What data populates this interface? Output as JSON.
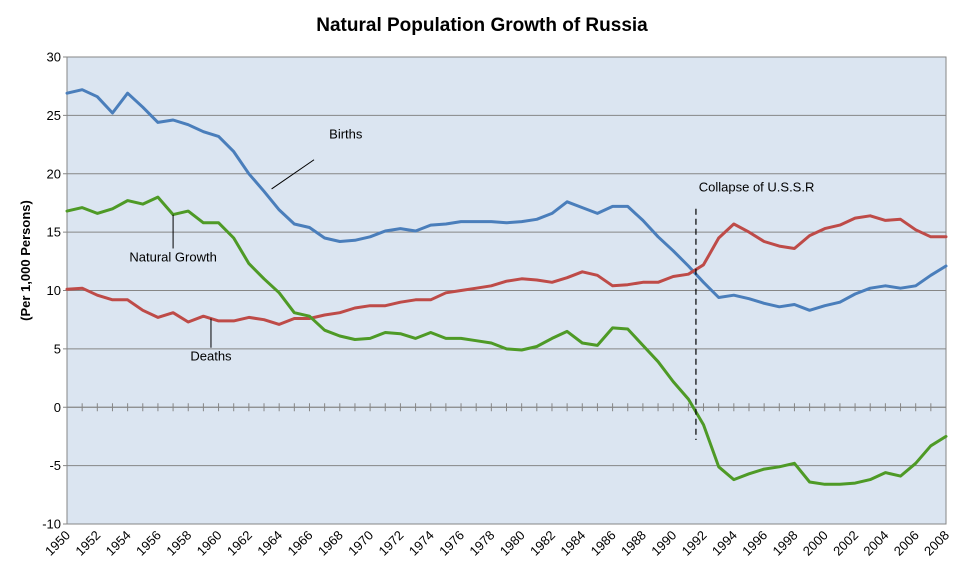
{
  "chart_data": {
    "type": "line",
    "title": "Natural Population Growth of Russia",
    "xlabel": "",
    "ylabel": "(Per 1,000 Persons)",
    "xlim": [
      1950,
      2008
    ],
    "ylim": [
      -10,
      30
    ],
    "yticks": [
      30,
      25,
      20,
      15,
      10,
      5,
      0,
      -5,
      -10
    ],
    "xticks": [
      1950,
      1952,
      1954,
      1956,
      1958,
      1960,
      1962,
      1964,
      1966,
      1968,
      1970,
      1972,
      1974,
      1976,
      1978,
      1980,
      1982,
      1984,
      1986,
      1988,
      1990,
      1992,
      1994,
      1996,
      1998,
      2000,
      2002,
      2004,
      2006,
      2008
    ],
    "grid": true,
    "background": "#dbe5f1",
    "x": [
      1950,
      1951,
      1952,
      1953,
      1954,
      1955,
      1956,
      1957,
      1958,
      1959,
      1960,
      1961,
      1962,
      1963,
      1964,
      1965,
      1966,
      1967,
      1968,
      1969,
      1970,
      1971,
      1972,
      1973,
      1974,
      1975,
      1976,
      1977,
      1978,
      1979,
      1980,
      1981,
      1982,
      1983,
      1984,
      1985,
      1986,
      1987,
      1988,
      1989,
      1990,
      1991,
      1992,
      1993,
      1994,
      1995,
      1996,
      1997,
      1998,
      1999,
      2000,
      2001,
      2002,
      2003,
      2004,
      2005,
      2006,
      2007,
      2008
    ],
    "series": [
      {
        "name": "Births",
        "color": "#4a7ebb",
        "values": [
          26.9,
          27.2,
          26.6,
          25.2,
          26.9,
          25.7,
          24.4,
          24.6,
          24.2,
          23.6,
          23.2,
          21.9,
          20.0,
          18.5,
          16.9,
          15.7,
          15.4,
          14.5,
          14.2,
          14.3,
          14.6,
          15.1,
          15.3,
          15.1,
          15.6,
          15.7,
          15.9,
          15.9,
          15.9,
          15.8,
          15.9,
          16.1,
          16.6,
          17.6,
          17.1,
          16.6,
          17.2,
          17.2,
          16.0,
          14.6,
          13.4,
          12.1,
          10.7,
          9.4,
          9.6,
          9.3,
          8.9,
          8.6,
          8.8,
          8.3,
          8.7,
          9.0,
          9.7,
          10.2,
          10.4,
          10.2,
          10.4,
          11.3,
          12.1
        ]
      },
      {
        "name": "Deaths",
        "color": "#be4b48",
        "values": [
          10.1,
          10.2,
          9.6,
          9.2,
          9.2,
          8.3,
          7.7,
          8.1,
          7.3,
          7.8,
          7.4,
          7.4,
          7.7,
          7.5,
          7.1,
          7.6,
          7.6,
          7.9,
          8.1,
          8.5,
          8.7,
          8.7,
          9.0,
          9.2,
          9.2,
          9.8,
          10.0,
          10.2,
          10.4,
          10.8,
          11.0,
          10.9,
          10.7,
          11.1,
          11.6,
          11.3,
          10.4,
          10.5,
          10.7,
          10.7,
          11.2,
          11.4,
          12.2,
          14.5,
          15.7,
          15.0,
          14.2,
          13.8,
          13.6,
          14.7,
          15.3,
          15.6,
          16.2,
          16.4,
          16.0,
          16.1,
          15.2,
          14.6,
          14.6
        ]
      },
      {
        "name": "Natural Growth",
        "color": "#4e9a26",
        "values": [
          16.8,
          17.1,
          16.6,
          17.0,
          17.7,
          17.4,
          18.0,
          16.5,
          16.8,
          15.8,
          15.8,
          14.5,
          12.3,
          11.0,
          9.8,
          8.1,
          7.8,
          6.6,
          6.1,
          5.8,
          5.9,
          6.4,
          6.3,
          5.9,
          6.4,
          5.9,
          5.9,
          5.7,
          5.5,
          5.0,
          4.9,
          5.2,
          5.9,
          6.5,
          5.5,
          5.3,
          6.8,
          6.7,
          5.3,
          3.9,
          2.2,
          0.7,
          -1.5,
          -5.1,
          -6.2,
          -5.7,
          -5.3,
          -5.1,
          -4.8,
          -6.4,
          -6.6,
          -6.6,
          -6.5,
          -6.2,
          -5.6,
          -5.9,
          -4.8,
          -3.3,
          -2.5
        ]
      }
    ],
    "annotations": [
      {
        "text": "Births",
        "x": 1963.5,
        "y": 18.7,
        "label_x": 1967.3,
        "label_y": 23
      },
      {
        "text": "Natural Growth",
        "x": 1957,
        "y": 16.5,
        "label_x": 1957,
        "label_y": 12.5
      },
      {
        "text": "Deaths",
        "x": 1959.5,
        "y": 7.6,
        "label_x": 1959.5,
        "label_y": 4.0
      },
      {
        "text": "Collapse of U.S.S.R",
        "x": 1991.5,
        "y": 0,
        "label_x": 1995.5,
        "label_y": 18.5
      }
    ],
    "event_line": {
      "x": 1991.5,
      "y_top": 17.0,
      "y_bottom": -2.8
    }
  }
}
